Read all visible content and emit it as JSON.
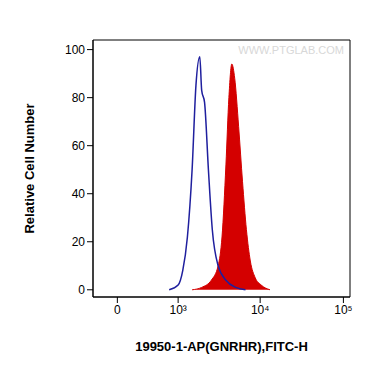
{
  "chart_data": {
    "type": "line",
    "xlabel": "19950-1-AP(GNRHR),FITC-H",
    "ylabel": "Relative Cell Number",
    "annotations": [
      "WWW.PTGLAB.COM"
    ],
    "log": "x",
    "xlim": [
      -280,
      120000
    ],
    "xticks": [
      0,
      {
        "value": 1000,
        "label": "10³"
      },
      {
        "value": 10000,
        "label": "10⁴"
      },
      {
        "value": 100000,
        "label": "10⁵"
      }
    ],
    "ylim": [
      -3,
      104
    ],
    "yticks": [
      0,
      20,
      40,
      60,
      80,
      100
    ],
    "series": [
      {
        "type": "line",
        "color": "#1f1f9e",
        "x": [
          763,
          1000,
          1145,
          1311,
          1500,
          1673,
          1866,
          1968,
          2134,
          2378,
          2652,
          3120,
          3875,
          5079,
          6668
        ],
        "values": [
          0,
          2,
          8,
          22,
          50,
          85,
          97,
          83,
          78,
          50,
          25,
          10,
          4,
          1,
          0
        ]
      },
      {
        "type": "area",
        "color": "#d40000",
        "x": [
          1500,
          1968,
          2582,
          3120,
          3475,
          3875,
          4207,
          4563,
          4946,
          5510,
          6140,
          6840,
          7620,
          8730,
          10280,
          13130
        ],
        "values": [
          0,
          1,
          4,
          10,
          22,
          52,
          80,
          94,
          88,
          68,
          45,
          25,
          12,
          5,
          2,
          0
        ]
      }
    ]
  }
}
